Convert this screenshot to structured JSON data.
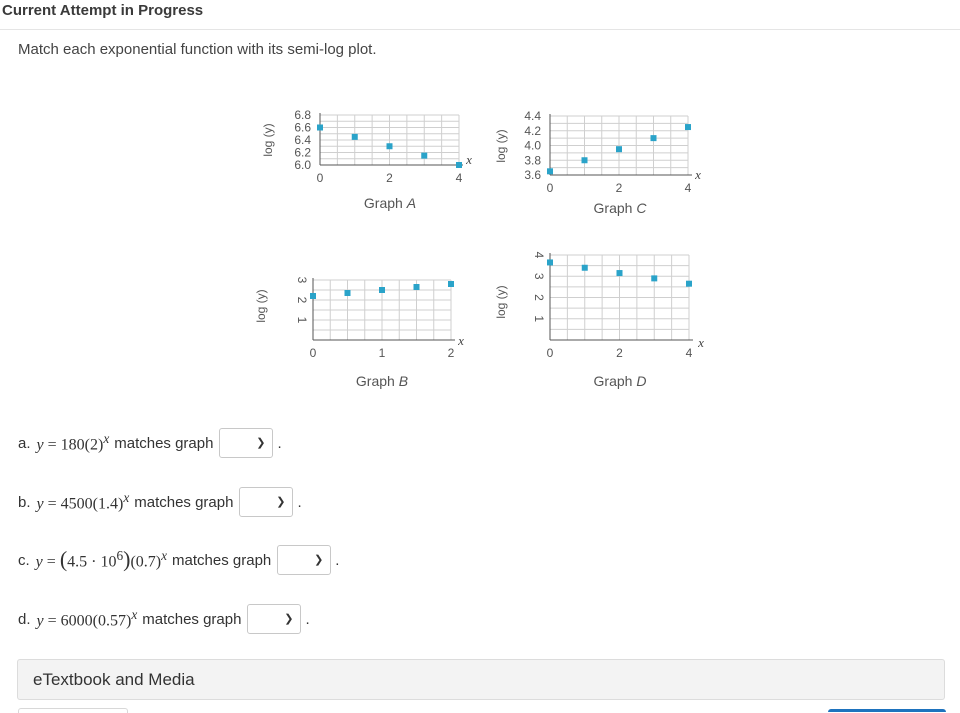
{
  "header": {
    "title": "Current Attempt in Progress"
  },
  "instructions": "Match each exponential function with its semi-log plot.",
  "colors": {
    "marker": "#2aa3c9",
    "grid": "#cfcfcf",
    "accent": "#1e73be"
  },
  "chart_data": [
    {
      "type": "scatter",
      "title": "Graph A",
      "ylabel": "log (y)",
      "xlabel": "x",
      "y_ticks": [
        "6.8",
        "6.6",
        "6.4",
        "6.2",
        "6.0"
      ],
      "x_ticks": [
        "0",
        "2",
        "4"
      ],
      "x": [
        0,
        1,
        2,
        3,
        4
      ],
      "y": [
        6.6,
        6.45,
        6.3,
        6.15,
        6.0
      ]
    },
    {
      "type": "scatter",
      "title": "Graph B",
      "ylabel": "log (y)",
      "xlabel": "x",
      "y_ticks": [
        "3",
        "2",
        "1"
      ],
      "x_ticks": [
        "0",
        "1",
        "2"
      ],
      "x": [
        0,
        0.5,
        1,
        1.5,
        2
      ],
      "y": [
        2.2,
        2.35,
        2.5,
        2.65,
        2.8
      ]
    },
    {
      "type": "scatter",
      "title": "Graph C",
      "ylabel": "log (y)",
      "xlabel": "x",
      "y_ticks": [
        "4.4",
        "4.2",
        "4.0",
        "3.8",
        "3.6"
      ],
      "x_ticks": [
        "0",
        "2",
        "4"
      ],
      "x": [
        0,
        1,
        2,
        3,
        4
      ],
      "y": [
        3.65,
        3.8,
        3.95,
        4.1,
        4.25
      ]
    },
    {
      "type": "scatter",
      "title": "Graph D",
      "ylabel": "log (y)",
      "xlabel": "x",
      "y_ticks": [
        "4",
        "3",
        "2",
        "1"
      ],
      "x_ticks": [
        "0",
        "2",
        "4"
      ],
      "x": [
        0,
        1,
        2,
        3,
        4
      ],
      "y": [
        3.65,
        3.4,
        3.15,
        2.9,
        2.65
      ]
    }
  ],
  "questions": [
    {
      "letter": "a.",
      "lhs": "y",
      "coef": "180",
      "base": "(2)",
      "exp": "x",
      "label": "matches graph",
      "selected": ""
    },
    {
      "letter": "b.",
      "lhs": "y",
      "coef": "4500",
      "base": "(1.4)",
      "exp": "x",
      "label": "matches graph",
      "selected": ""
    },
    {
      "letter": "c.",
      "lhs": "y",
      "coef_a": "4.5 · 10",
      "coef_exp": "6",
      "base": "(0.7)",
      "exp": "x",
      "label": "matches graph",
      "selected": ""
    },
    {
      "letter": "d.",
      "lhs": "y",
      "coef": "6000",
      "base": "(0.57)",
      "exp": "x",
      "label": "matches graph",
      "selected": ""
    }
  ],
  "etextbook": {
    "label": "eTextbook and Media"
  }
}
